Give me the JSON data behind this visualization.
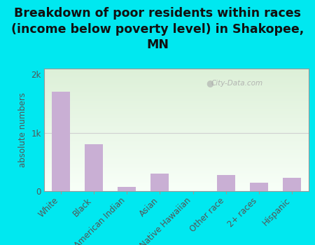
{
  "categories": [
    "White",
    "Black",
    "American Indian",
    "Asian",
    "Native Hawaiian",
    "Other race",
    "2+ races",
    "Hispanic"
  ],
  "values": [
    1700,
    800,
    75,
    300,
    0,
    280,
    150,
    230
  ],
  "bar_color": "#c9afd4",
  "title": "Breakdown of poor residents within races\n(income below poverty level) in Shakopee,\nMN",
  "ylabel": "absolute numbers",
  "outer_bg": "#00e8f0",
  "plot_bg_top_left": "#ddf0d8",
  "plot_bg_bottom_right": "#f8fdf8",
  "ytick_labels": [
    "0",
    "1k",
    "2k"
  ],
  "ytick_vals": [
    0,
    1000,
    2000
  ],
  "ylim": [
    0,
    2100
  ],
  "watermark": "City-Data.com",
  "title_fontsize": 12.5,
  "label_fontsize": 8.5,
  "tick_fontsize": 8.5,
  "hline_color": "#d0d0d0",
  "spine_color": "#999999"
}
